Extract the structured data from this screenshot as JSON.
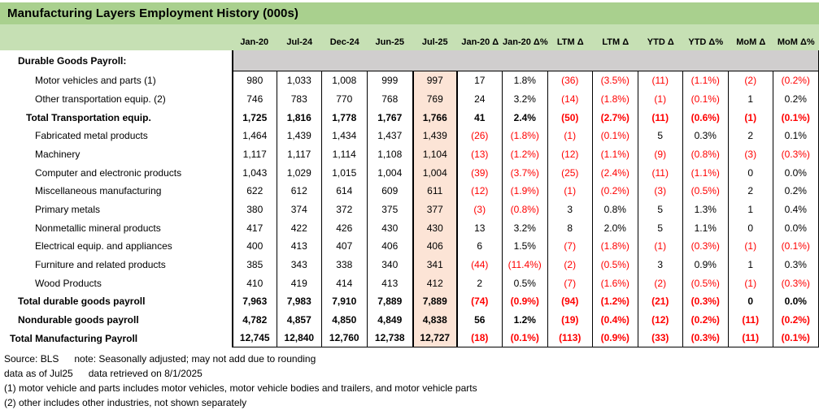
{
  "title": "Manufacturing Layers Employment History (000s)",
  "colors": {
    "title_bar": "#A9D08E",
    "header_band": "#C6E0B4",
    "section_band": "#D0CECE",
    "highlight_column": "#FCE4D6",
    "negative_text": "#FF0000",
    "text": "#000000"
  },
  "highlight_column": "Jul-25",
  "columns": [
    "Jan-20",
    "Jul-24",
    "Dec-24",
    "Jun-25",
    "Jul-25",
    "Jan-20 Δ",
    "Jan-20 Δ%",
    "LTM Δ",
    "LTM Δ",
    "YTD Δ",
    "YTD Δ%",
    "MoM Δ",
    "MoM Δ%"
  ],
  "section": {
    "label": "Durable Goods Payroll:"
  },
  "rows": [
    {
      "label": "Motor vehicles and parts (1)",
      "indent": 3,
      "bold": false,
      "values": [
        "980",
        "1,033",
        "1,008",
        "999",
        "997",
        "17",
        "1.8%",
        "(36)",
        "(3.5%)",
        "(11)",
        "(1.1%)",
        "(2)",
        "(0.2%)"
      ]
    },
    {
      "label": "Other transportation equip. (2)",
      "indent": 3,
      "bold": false,
      "values": [
        "746",
        "783",
        "770",
        "768",
        "769",
        "24",
        "3.2%",
        "(14)",
        "(1.8%)",
        "(1)",
        "(0.1%)",
        "1",
        "0.2%"
      ]
    },
    {
      "label": "Total Transportation equip.",
      "indent": 2,
      "bold": true,
      "values": [
        "1,725",
        "1,816",
        "1,778",
        "1,767",
        "1,766",
        "41",
        "2.4%",
        "(50)",
        "(2.7%)",
        "(11)",
        "(0.6%)",
        "(1)",
        "(0.1%)"
      ]
    },
    {
      "label": "Fabricated metal products",
      "indent": 3,
      "bold": false,
      "values": [
        "1,464",
        "1,439",
        "1,434",
        "1,437",
        "1,439",
        "(26)",
        "(1.8%)",
        "(1)",
        "(0.1%)",
        "5",
        "0.3%",
        "2",
        "0.1%"
      ]
    },
    {
      "label": "Machinery",
      "indent": 3,
      "bold": false,
      "values": [
        "1,117",
        "1,117",
        "1,114",
        "1,108",
        "1,104",
        "(13)",
        "(1.2%)",
        "(12)",
        "(1.1%)",
        "(9)",
        "(0.8%)",
        "(3)",
        "(0.3%)"
      ]
    },
    {
      "label": "Computer and electronic products",
      "indent": 3,
      "bold": false,
      "values": [
        "1,043",
        "1,029",
        "1,015",
        "1,004",
        "1,004",
        "(39)",
        "(3.7%)",
        "(25)",
        "(2.4%)",
        "(11)",
        "(1.1%)",
        "0",
        "0.0%"
      ]
    },
    {
      "label": "Miscellaneous manufacturing",
      "indent": 3,
      "bold": false,
      "values": [
        "622",
        "612",
        "614",
        "609",
        "611",
        "(12)",
        "(1.9%)",
        "(1)",
        "(0.2%)",
        "(3)",
        "(0.5%)",
        "2",
        "0.2%"
      ]
    },
    {
      "label": "Primary metals",
      "indent": 3,
      "bold": false,
      "values": [
        "380",
        "374",
        "372",
        "375",
        "377",
        "(3)",
        "(0.8%)",
        "3",
        "0.8%",
        "5",
        "1.3%",
        "1",
        "0.4%"
      ]
    },
    {
      "label": "Nonmetallic mineral products",
      "indent": 3,
      "bold": false,
      "values": [
        "417",
        "422",
        "426",
        "430",
        "430",
        "13",
        "3.2%",
        "8",
        "2.0%",
        "5",
        "1.1%",
        "0",
        "0.0%"
      ]
    },
    {
      "label": "Electrical equip. and appliances",
      "indent": 3,
      "bold": false,
      "values": [
        "400",
        "413",
        "407",
        "406",
        "406",
        "6",
        "1.5%",
        "(7)",
        "(1.8%)",
        "(1)",
        "(0.3%)",
        "(1)",
        "(0.1%)"
      ]
    },
    {
      "label": "Furniture and related products",
      "indent": 3,
      "bold": false,
      "values": [
        "385",
        "343",
        "338",
        "340",
        "341",
        "(44)",
        "(11.4%)",
        "(2)",
        "(0.5%)",
        "3",
        "0.9%",
        "1",
        "0.3%"
      ]
    },
    {
      "label": "Wood Products",
      "indent": 3,
      "bold": false,
      "values": [
        "410",
        "419",
        "414",
        "413",
        "412",
        "2",
        "0.5%",
        "(7)",
        "(1.6%)",
        "(2)",
        "(0.5%)",
        "(1)",
        "(0.3%)"
      ]
    },
    {
      "label": "Total durable goods payroll",
      "indent": 1,
      "bold": true,
      "values": [
        "7,963",
        "7,983",
        "7,910",
        "7,889",
        "7,889",
        "(74)",
        "(0.9%)",
        "(94)",
        "(1.2%)",
        "(21)",
        "(0.3%)",
        "0",
        "0.0%"
      ]
    },
    {
      "label": "Nondurable goods payroll",
      "indent": 1,
      "bold": true,
      "values": [
        "4,782",
        "4,857",
        "4,850",
        "4,849",
        "4,838",
        "56",
        "1.2%",
        "(19)",
        "(0.4%)",
        "(12)",
        "(0.2%)",
        "(11)",
        "(0.2%)"
      ]
    },
    {
      "label": "Total Manufacturing Payroll",
      "indent": 0,
      "bold": true,
      "values": [
        "12,745",
        "12,840",
        "12,760",
        "12,738",
        "12,727",
        "(18)",
        "(0.1%)",
        "(113)",
        "(0.9%)",
        "(33)",
        "(0.3%)",
        "(11)",
        "(0.1%)"
      ]
    }
  ],
  "footer": {
    "source": "Source: BLS",
    "note": "note: Seasonally adjusted; may not add due to rounding",
    "as_of": "data as of Jul25",
    "retrieved": "data retrieved on 8/1/2025",
    "footnote1": "(1) motor vehicle and parts includes motor vehicles, motor vehicle bodies and trailers, and motor vehicle parts",
    "footnote2": "(2) other includes other industries, not shown separately"
  }
}
